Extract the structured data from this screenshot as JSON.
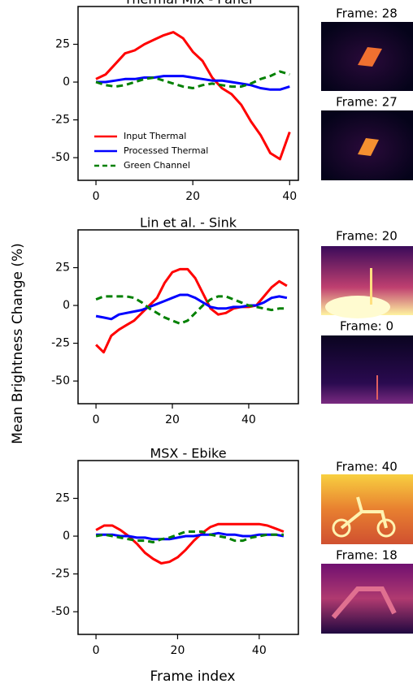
{
  "figure": {
    "ylabel": "Mean Brightness Change (%)",
    "xlabel": "Frame index"
  },
  "chart_data": [
    {
      "type": "line",
      "title": "Thermal Mix - Panel",
      "frames": [
        "Frame: 28",
        "Frame: 27"
      ],
      "x": [
        0,
        2,
        4,
        6,
        8,
        10,
        12,
        14,
        16,
        18,
        20,
        22,
        24,
        26,
        28,
        30,
        32,
        34,
        36,
        38,
        40
      ],
      "series": [
        {
          "name": "Input Thermal",
          "color": "#ff0000",
          "dash": false,
          "values": [
            2,
            5,
            12,
            19,
            21,
            25,
            28,
            31,
            33,
            29,
            20,
            14,
            3,
            -4,
            -8,
            -15,
            -26,
            -35,
            -47,
            -51,
            -33
          ]
        },
        {
          "name": "Processed Thermal",
          "color": "#0000ff",
          "dash": false,
          "values": [
            0,
            0,
            1,
            2,
            2,
            3,
            3,
            4,
            4,
            4,
            3,
            2,
            1,
            1,
            0,
            -1,
            -2,
            -4,
            -5,
            -5,
            -3
          ]
        },
        {
          "name": "Green Channel",
          "color": "#008000",
          "dash": true,
          "values": [
            0,
            -2,
            -3,
            -2,
            0,
            2,
            3,
            1,
            -1,
            -3,
            -4,
            -2,
            -1,
            -2,
            -3,
            -3,
            -1,
            2,
            4,
            7,
            5
          ]
        }
      ],
      "xlim": [
        -3.7,
        41.8
      ],
      "xticks": [
        0,
        20,
        40
      ],
      "ylim": [
        -65,
        50
      ],
      "yticks": [
        -50,
        -25,
        0,
        25
      ],
      "legend": "lower left"
    },
    {
      "type": "line",
      "title": "Lin et al. - Sink",
      "frames": [
        "Frame: 20",
        "Frame: 0"
      ],
      "x": [
        0,
        2,
        4,
        6,
        8,
        10,
        12,
        14,
        16,
        18,
        20,
        22,
        24,
        26,
        28,
        30,
        32,
        34,
        36,
        38,
        40,
        42,
        44,
        46,
        48,
        50
      ],
      "series": [
        {
          "color": "#ff0000",
          "dash": false,
          "values": [
            -26,
            -31,
            -20,
            -16,
            -13,
            -10,
            -5,
            0,
            5,
            15,
            22,
            24,
            24,
            18,
            8,
            -2,
            -6,
            -5,
            -2,
            -1,
            -1,
            0,
            6,
            12,
            16,
            13
          ]
        },
        {
          "color": "#0000ff",
          "dash": false,
          "values": [
            -7,
            -8,
            -9,
            -6,
            -5,
            -4,
            -3,
            -1,
            1,
            3,
            5,
            7,
            7,
            5,
            2,
            -1,
            -2,
            -2,
            -1,
            -1,
            0,
            0,
            2,
            5,
            6,
            5
          ]
        },
        {
          "color": "#008000",
          "dash": true,
          "values": [
            4,
            6,
            6,
            6,
            6,
            5,
            2,
            -2,
            -5,
            -8,
            -10,
            -12,
            -10,
            -5,
            0,
            4,
            6,
            6,
            4,
            2,
            0,
            -1,
            -2,
            -3,
            -2,
            -2
          ]
        }
      ],
      "xlim": [
        -4.7,
        53
      ],
      "xticks": [
        0,
        20,
        40
      ],
      "ylim": [
        -65,
        50
      ],
      "yticks": [
        -50,
        -25,
        0,
        25
      ]
    },
    {
      "type": "line",
      "title": "MSX - Ebike",
      "frames": [
        "Frame: 40",
        "Frame: 18"
      ],
      "x": [
        0,
        2,
        4,
        6,
        8,
        10,
        12,
        14,
        16,
        18,
        20,
        22,
        24,
        26,
        28,
        30,
        32,
        34,
        36,
        38,
        40,
        42,
        44,
        46
      ],
      "series": [
        {
          "color": "#ff0000",
          "dash": false,
          "values": [
            4,
            7,
            7,
            4,
            0,
            -5,
            -11,
            -15,
            -18,
            -17,
            -14,
            -9,
            -3,
            2,
            6,
            8,
            8,
            8,
            8,
            8,
            8,
            7,
            5,
            3
          ]
        },
        {
          "color": "#0000ff",
          "dash": false,
          "values": [
            1,
            1,
            1,
            0,
            0,
            -1,
            -1,
            -2,
            -2,
            -2,
            -1,
            0,
            0,
            1,
            1,
            2,
            1,
            1,
            0,
            0,
            1,
            1,
            1,
            0
          ]
        },
        {
          "color": "#008000",
          "dash": true,
          "values": [
            0,
            1,
            0,
            -1,
            -2,
            -3,
            -3,
            -4,
            -2,
            -1,
            1,
            3,
            3,
            3,
            1,
            0,
            -1,
            -3,
            -3,
            -1,
            0,
            1,
            1,
            1
          ]
        }
      ],
      "xlim": [
        -4.4,
        49.6
      ],
      "xticks": [
        0,
        20,
        40
      ],
      "ylim": [
        -65,
        50
      ],
      "yticks": [
        -50,
        -25,
        0,
        25
      ]
    }
  ]
}
